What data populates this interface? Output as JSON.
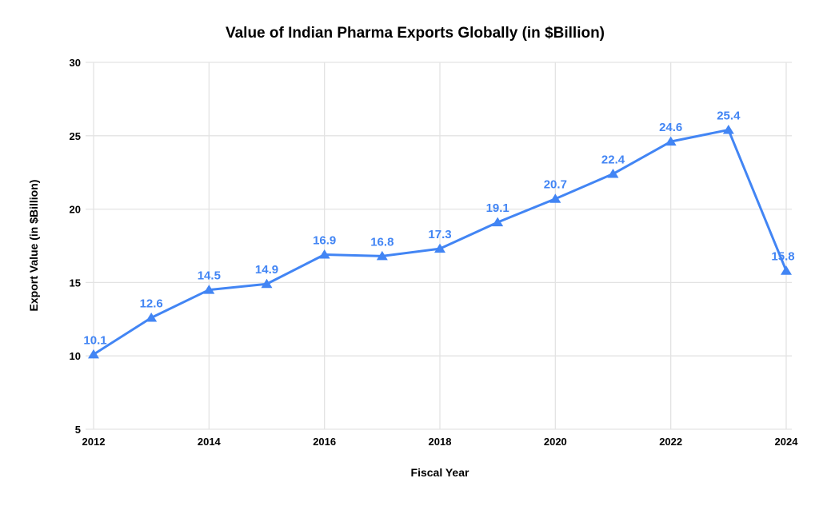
{
  "chart_data": {
    "type": "line",
    "title": "Value of Indian Pharma Exports Globally (in $Billion)",
    "xlabel": "Fiscal Year",
    "ylabel": "Export Value (in $Billion)",
    "x": [
      2012,
      2013,
      2014,
      2015,
      2016,
      2017,
      2018,
      2019,
      2020,
      2021,
      2022,
      2023,
      2024
    ],
    "series": [
      {
        "values": [
          10.1,
          12.6,
          14.5,
          14.9,
          16.9,
          16.8,
          17.3,
          19.1,
          20.7,
          22.4,
          24.6,
          25.4,
          15.8
        ],
        "labels": [
          "10.1",
          "12.6",
          "14.5",
          "14.9",
          "16.9",
          "16.8",
          "17.3",
          "19.1",
          "20.7",
          "22.4",
          "24.6",
          "25.4",
          "15.8"
        ],
        "color": "#4285f4",
        "marker": "triangle-up"
      }
    ],
    "xlim": [
      2012,
      2024
    ],
    "ylim": [
      5,
      30
    ],
    "xticks": [
      2012,
      2014,
      2016,
      2018,
      2020,
      2022,
      2024
    ],
    "yticks": [
      5,
      10,
      15,
      20,
      25,
      30
    ],
    "grid": true,
    "grid_color": "#e3e3e3",
    "legend": "none",
    "background": "#ffffff",
    "label_color": "#4285f4"
  }
}
